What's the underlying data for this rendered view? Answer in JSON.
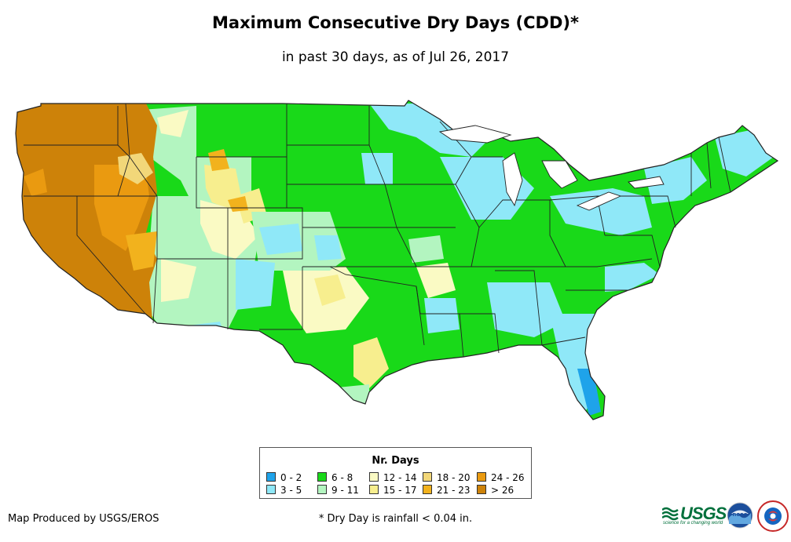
{
  "title": "Maximum Consecutive Dry Days (CDD)*",
  "subtitle": "in past 30 days, as of Jul 26, 2017",
  "legend": {
    "title": "Nr. Days",
    "items": [
      {
        "label": "0 - 2",
        "color": "#1fa3ea"
      },
      {
        "label": "3 - 5",
        "color": "#8fe8f8"
      },
      {
        "label": "6 - 8",
        "color": "#19d919"
      },
      {
        "label": "9 - 11",
        "color": "#b3f5c0"
      },
      {
        "label": "12 - 14",
        "color": "#fafac4"
      },
      {
        "label": "15 - 17",
        "color": "#f7ee8e"
      },
      {
        "label": "18 - 20",
        "color": "#f2d779"
      },
      {
        "label": "21 - 23",
        "color": "#f2b21d"
      },
      {
        "label": "24 - 26",
        "color": "#ea9a10"
      },
      {
        "label": "> 26",
        "color": "#cd8209"
      }
    ]
  },
  "credit": "Map Produced by USGS/EROS",
  "footnote": "* Dry Day is rainfall < 0.04 in.",
  "logos": {
    "usgs": "USGS",
    "usgs_tagline": "science for a changing world",
    "noaa": "noaa"
  },
  "colors": {
    "state_border": "#222222",
    "county_border": "#555555"
  }
}
